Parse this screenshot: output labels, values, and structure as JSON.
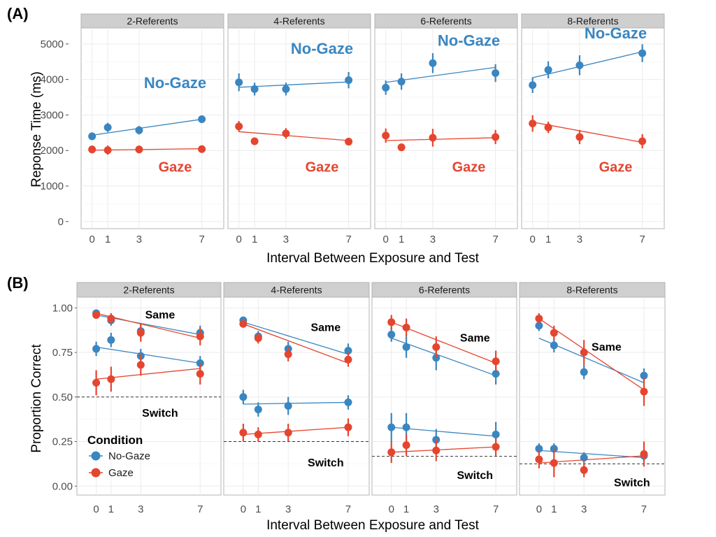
{
  "colors": {
    "No-Gaze": "#3a86c0",
    "Gaze": "#e5452f"
  },
  "chart_data": [
    {
      "panel_label": "(A)",
      "type": "line",
      "xlabel": "Interval Between Exposure and Test",
      "ylabel": "Reponse Time (ms)",
      "ylim": [
        -200,
        5450
      ],
      "xlim": [
        -0.7,
        8.4
      ],
      "x_ticks": [
        0,
        1,
        3,
        7
      ],
      "y_ticks": [
        0,
        1000,
        2000,
        3000,
        4000,
        5000
      ],
      "y_tick_labels": [
        "0",
        "1000",
        "2000",
        "3000",
        "4000",
        "5000"
      ],
      "grid": true,
      "facets": [
        {
          "title": "2-Referents",
          "series": [
            {
              "name": "No-Gaze",
              "x": [
                0,
                1,
                3,
                7
              ],
              "y": [
                2400,
                2650,
                2570,
                2880
              ],
              "ci": [
                100,
                130,
                120,
                100
              ],
              "fit": [
                2430,
                2880
              ]
            },
            {
              "name": "Gaze",
              "x": [
                0,
                1,
                3,
                7
              ],
              "y": [
                2030,
                2010,
                2030,
                2040
              ],
              "ci": [
                110,
                130,
                110,
                100
              ],
              "fit": [
                2010,
                2050
              ]
            }
          ],
          "annotations": [
            {
              "text": "No-Gaze",
              "series": "No-Gaze",
              "x": 5.3,
              "y": 3760
            },
            {
              "text": "Gaze",
              "series": "Gaze",
              "x": 5.3,
              "y": 1400
            }
          ]
        },
        {
          "title": "4-Referents",
          "series": [
            {
              "name": "No-Gaze",
              "x": [
                0,
                1,
                3,
                7
              ],
              "y": [
                3920,
                3730,
                3730,
                3980
              ],
              "ci": [
                250,
                180,
                180,
                230
              ],
              "fit": [
                3780,
                3930
              ]
            },
            {
              "name": "Gaze",
              "x": [
                0,
                1,
                3,
                7
              ],
              "y": [
                2680,
                2260,
                2480,
                2250
              ],
              "ci": [
                150,
                100,
                150,
                110
              ],
              "fit": [
                2530,
                2280
              ]
            }
          ],
          "annotations": [
            {
              "text": "No-Gaze",
              "series": "No-Gaze",
              "x": 5.3,
              "y": 4720
            },
            {
              "text": "Gaze",
              "series": "Gaze",
              "x": 5.3,
              "y": 1400
            }
          ]
        },
        {
          "title": "6-Referents",
          "series": [
            {
              "name": "No-Gaze",
              "x": [
                0,
                1,
                3,
                7
              ],
              "y": [
                3770,
                3940,
                4460,
                4180
              ],
              "ci": [
                200,
                230,
                280,
                250
              ],
              "fit": [
                3920,
                4340
              ]
            },
            {
              "name": "Gaze",
              "x": [
                0,
                1,
                3,
                7
              ],
              "y": [
                2420,
                2090,
                2360,
                2380
              ],
              "ci": [
                200,
                100,
                250,
                200
              ],
              "fit": [
                2280,
                2360
              ]
            }
          ],
          "annotations": [
            {
              "text": "No-Gaze",
              "series": "No-Gaze",
              "x": 5.3,
              "y": 4950
            },
            {
              "text": "Gaze",
              "series": "Gaze",
              "x": 5.3,
              "y": 1400
            }
          ]
        },
        {
          "title": "8-Referents",
          "series": [
            {
              "name": "No-Gaze",
              "x": [
                0,
                1,
                3,
                7
              ],
              "y": [
                3840,
                4270,
                4400,
                4740
              ],
              "ci": [
                220,
                240,
                280,
                250
              ],
              "fit": [
                4050,
                4780
              ]
            },
            {
              "name": "Gaze",
              "x": [
                0,
                1,
                3,
                7
              ],
              "y": [
                2760,
                2650,
                2380,
                2260
              ],
              "ci": [
                230,
                160,
                200,
                200
              ],
              "fit": [
                2800,
                2230
              ]
            }
          ],
          "annotations": [
            {
              "text": "No-Gaze",
              "series": "No-Gaze",
              "x": 5.3,
              "y": 5150
            },
            {
              "text": "Gaze",
              "series": "Gaze",
              "x": 5.3,
              "y": 1400
            }
          ]
        }
      ]
    },
    {
      "panel_label": "(B)",
      "type": "line",
      "xlabel": "Interval Between Exposure and Test",
      "ylabel": "Proportion Correct",
      "ylim": [
        -0.05,
        1.06
      ],
      "xlim": [
        -1.3,
        8.4
      ],
      "x_ticks": [
        0,
        1,
        3,
        7
      ],
      "y_ticks": [
        0,
        0.25,
        0.5,
        0.75,
        1.0
      ],
      "y_tick_labels": [
        "0.00",
        "0.25",
        "0.50",
        "0.75",
        "1.00"
      ],
      "grid": true,
      "legend": {
        "title": "Condition",
        "placement": "bottom-left",
        "entries": [
          "No-Gaze",
          "Gaze"
        ]
      },
      "facets": [
        {
          "title": "2-Referents",
          "chance": 0.5,
          "series": [
            {
              "name": "No-Gaze",
              "trial": "Same",
              "x": [
                0,
                1,
                3,
                7
              ],
              "y": [
                0.97,
                0.93,
                0.87,
                0.86
              ],
              "ci": [
                0.02,
                0.03,
                0.04,
                0.04
              ],
              "fit": [
                0.96,
                0.85
              ]
            },
            {
              "name": "Gaze",
              "trial": "Same",
              "x": [
                0,
                1,
                3,
                7
              ],
              "y": [
                0.96,
                0.94,
                0.86,
                0.84
              ],
              "ci": [
                0.02,
                0.03,
                0.05,
                0.05
              ],
              "fit": [
                0.97,
                0.83
              ]
            },
            {
              "name": "No-Gaze",
              "trial": "Switch",
              "x": [
                0,
                1,
                3,
                7
              ],
              "y": [
                0.77,
                0.82,
                0.73,
                0.69
              ],
              "ci": [
                0.04,
                0.04,
                0.04,
                0.04
              ],
              "fit": [
                0.78,
                0.69
              ]
            },
            {
              "name": "Gaze",
              "trial": "Switch",
              "x": [
                0,
                1,
                3,
                7
              ],
              "y": [
                0.58,
                0.6,
                0.68,
                0.63
              ],
              "ci": [
                0.07,
                0.07,
                0.06,
                0.06
              ],
              "fit": [
                0.6,
                0.66
              ]
            }
          ],
          "annotations": [
            {
              "text": "Same",
              "x": 4.3,
              "y": 0.94
            },
            {
              "text": "Switch",
              "x": 4.3,
              "y": 0.39
            }
          ]
        },
        {
          "title": "4-Referents",
          "chance": 0.25,
          "series": [
            {
              "name": "No-Gaze",
              "trial": "Same",
              "x": [
                0,
                1,
                3,
                7
              ],
              "y": [
                0.93,
                0.84,
                0.77,
                0.76
              ],
              "ci": [
                0.02,
                0.03,
                0.04,
                0.04
              ],
              "fit": [
                0.92,
                0.74
              ]
            },
            {
              "name": "Gaze",
              "trial": "Same",
              "x": [
                0,
                1,
                3,
                7
              ],
              "y": [
                0.91,
                0.83,
                0.74,
                0.71
              ],
              "ci": [
                0.02,
                0.03,
                0.04,
                0.04
              ],
              "fit": [
                0.91,
                0.69
              ]
            },
            {
              "name": "No-Gaze",
              "trial": "Switch",
              "x": [
                0,
                1,
                3,
                7
              ],
              "y": [
                0.5,
                0.43,
                0.45,
                0.47
              ],
              "ci": [
                0.04,
                0.04,
                0.05,
                0.04
              ],
              "fit": [
                0.46,
                0.47
              ]
            },
            {
              "name": "Gaze",
              "trial": "Switch",
              "x": [
                0,
                1,
                3,
                7
              ],
              "y": [
                0.3,
                0.29,
                0.3,
                0.33
              ],
              "ci": [
                0.05,
                0.04,
                0.05,
                0.05
              ],
              "fit": [
                0.29,
                0.33
              ]
            }
          ],
          "annotations": [
            {
              "text": "Same",
              "x": 5.5,
              "y": 0.87
            },
            {
              "text": "Switch",
              "x": 5.5,
              "y": 0.11
            }
          ]
        },
        {
          "title": "6-Referents",
          "chance": 0.167,
          "series": [
            {
              "name": "No-Gaze",
              "trial": "Same",
              "x": [
                0,
                1,
                3,
                7
              ],
              "y": [
                0.85,
                0.78,
                0.72,
                0.63
              ],
              "ci": [
                0.04,
                0.06,
                0.07,
                0.06
              ],
              "fit": [
                0.83,
                0.62
              ]
            },
            {
              "name": "Gaze",
              "trial": "Same",
              "x": [
                0,
                1,
                3,
                7
              ],
              "y": [
                0.92,
                0.89,
                0.78,
                0.7
              ],
              "ci": [
                0.04,
                0.05,
                0.06,
                0.06
              ],
              "fit": [
                0.92,
                0.69
              ]
            },
            {
              "name": "No-Gaze",
              "trial": "Switch",
              "x": [
                0,
                1,
                3,
                7
              ],
              "y": [
                0.33,
                0.33,
                0.26,
                0.29
              ],
              "ci": [
                0.08,
                0.08,
                0.06,
                0.07
              ],
              "fit": [
                0.33,
                0.28
              ]
            },
            {
              "name": "Gaze",
              "trial": "Switch",
              "x": [
                0,
                1,
                3,
                7
              ],
              "y": [
                0.19,
                0.23,
                0.2,
                0.22
              ],
              "ci": [
                0.06,
                0.06,
                0.06,
                0.05
              ],
              "fit": [
                0.19,
                0.22
              ]
            }
          ],
          "annotations": [
            {
              "text": "Same",
              "x": 5.6,
              "y": 0.81
            },
            {
              "text": "Switch",
              "x": 5.6,
              "y": 0.04
            }
          ]
        },
        {
          "title": "8-Referents",
          "chance": 0.125,
          "series": [
            {
              "name": "No-Gaze",
              "trial": "Same",
              "x": [
                0,
                1,
                3,
                7
              ],
              "y": [
                0.9,
                0.79,
                0.64,
                0.62
              ],
              "ci": [
                0.03,
                0.04,
                0.04,
                0.04
              ],
              "fit": [
                0.83,
                0.58
              ]
            },
            {
              "name": "Gaze",
              "trial": "Same",
              "x": [
                0,
                1,
                3,
                7
              ],
              "y": [
                0.94,
                0.86,
                0.75,
                0.53
              ],
              "ci": [
                0.03,
                0.04,
                0.07,
                0.08
              ],
              "fit": [
                0.94,
                0.54
              ]
            },
            {
              "name": "No-Gaze",
              "trial": "Switch",
              "x": [
                0,
                1,
                3,
                7
              ],
              "y": [
                0.21,
                0.21,
                0.16,
                0.17
              ],
              "ci": [
                0.03,
                0.03,
                0.03,
                0.03
              ],
              "fit": [
                0.2,
                0.16
              ]
            },
            {
              "name": "Gaze",
              "trial": "Switch",
              "x": [
                0,
                1,
                3,
                7
              ],
              "y": [
                0.15,
                0.13,
                0.09,
                0.18
              ],
              "ci": [
                0.05,
                0.08,
                0.04,
                0.07
              ],
              "fit": [
                0.13,
                0.17
              ]
            }
          ],
          "annotations": [
            {
              "text": "Same",
              "x": 4.5,
              "y": 0.76
            },
            {
              "text": "Switch",
              "x": 6.2,
              "y": 0.0
            }
          ]
        }
      ]
    }
  ]
}
